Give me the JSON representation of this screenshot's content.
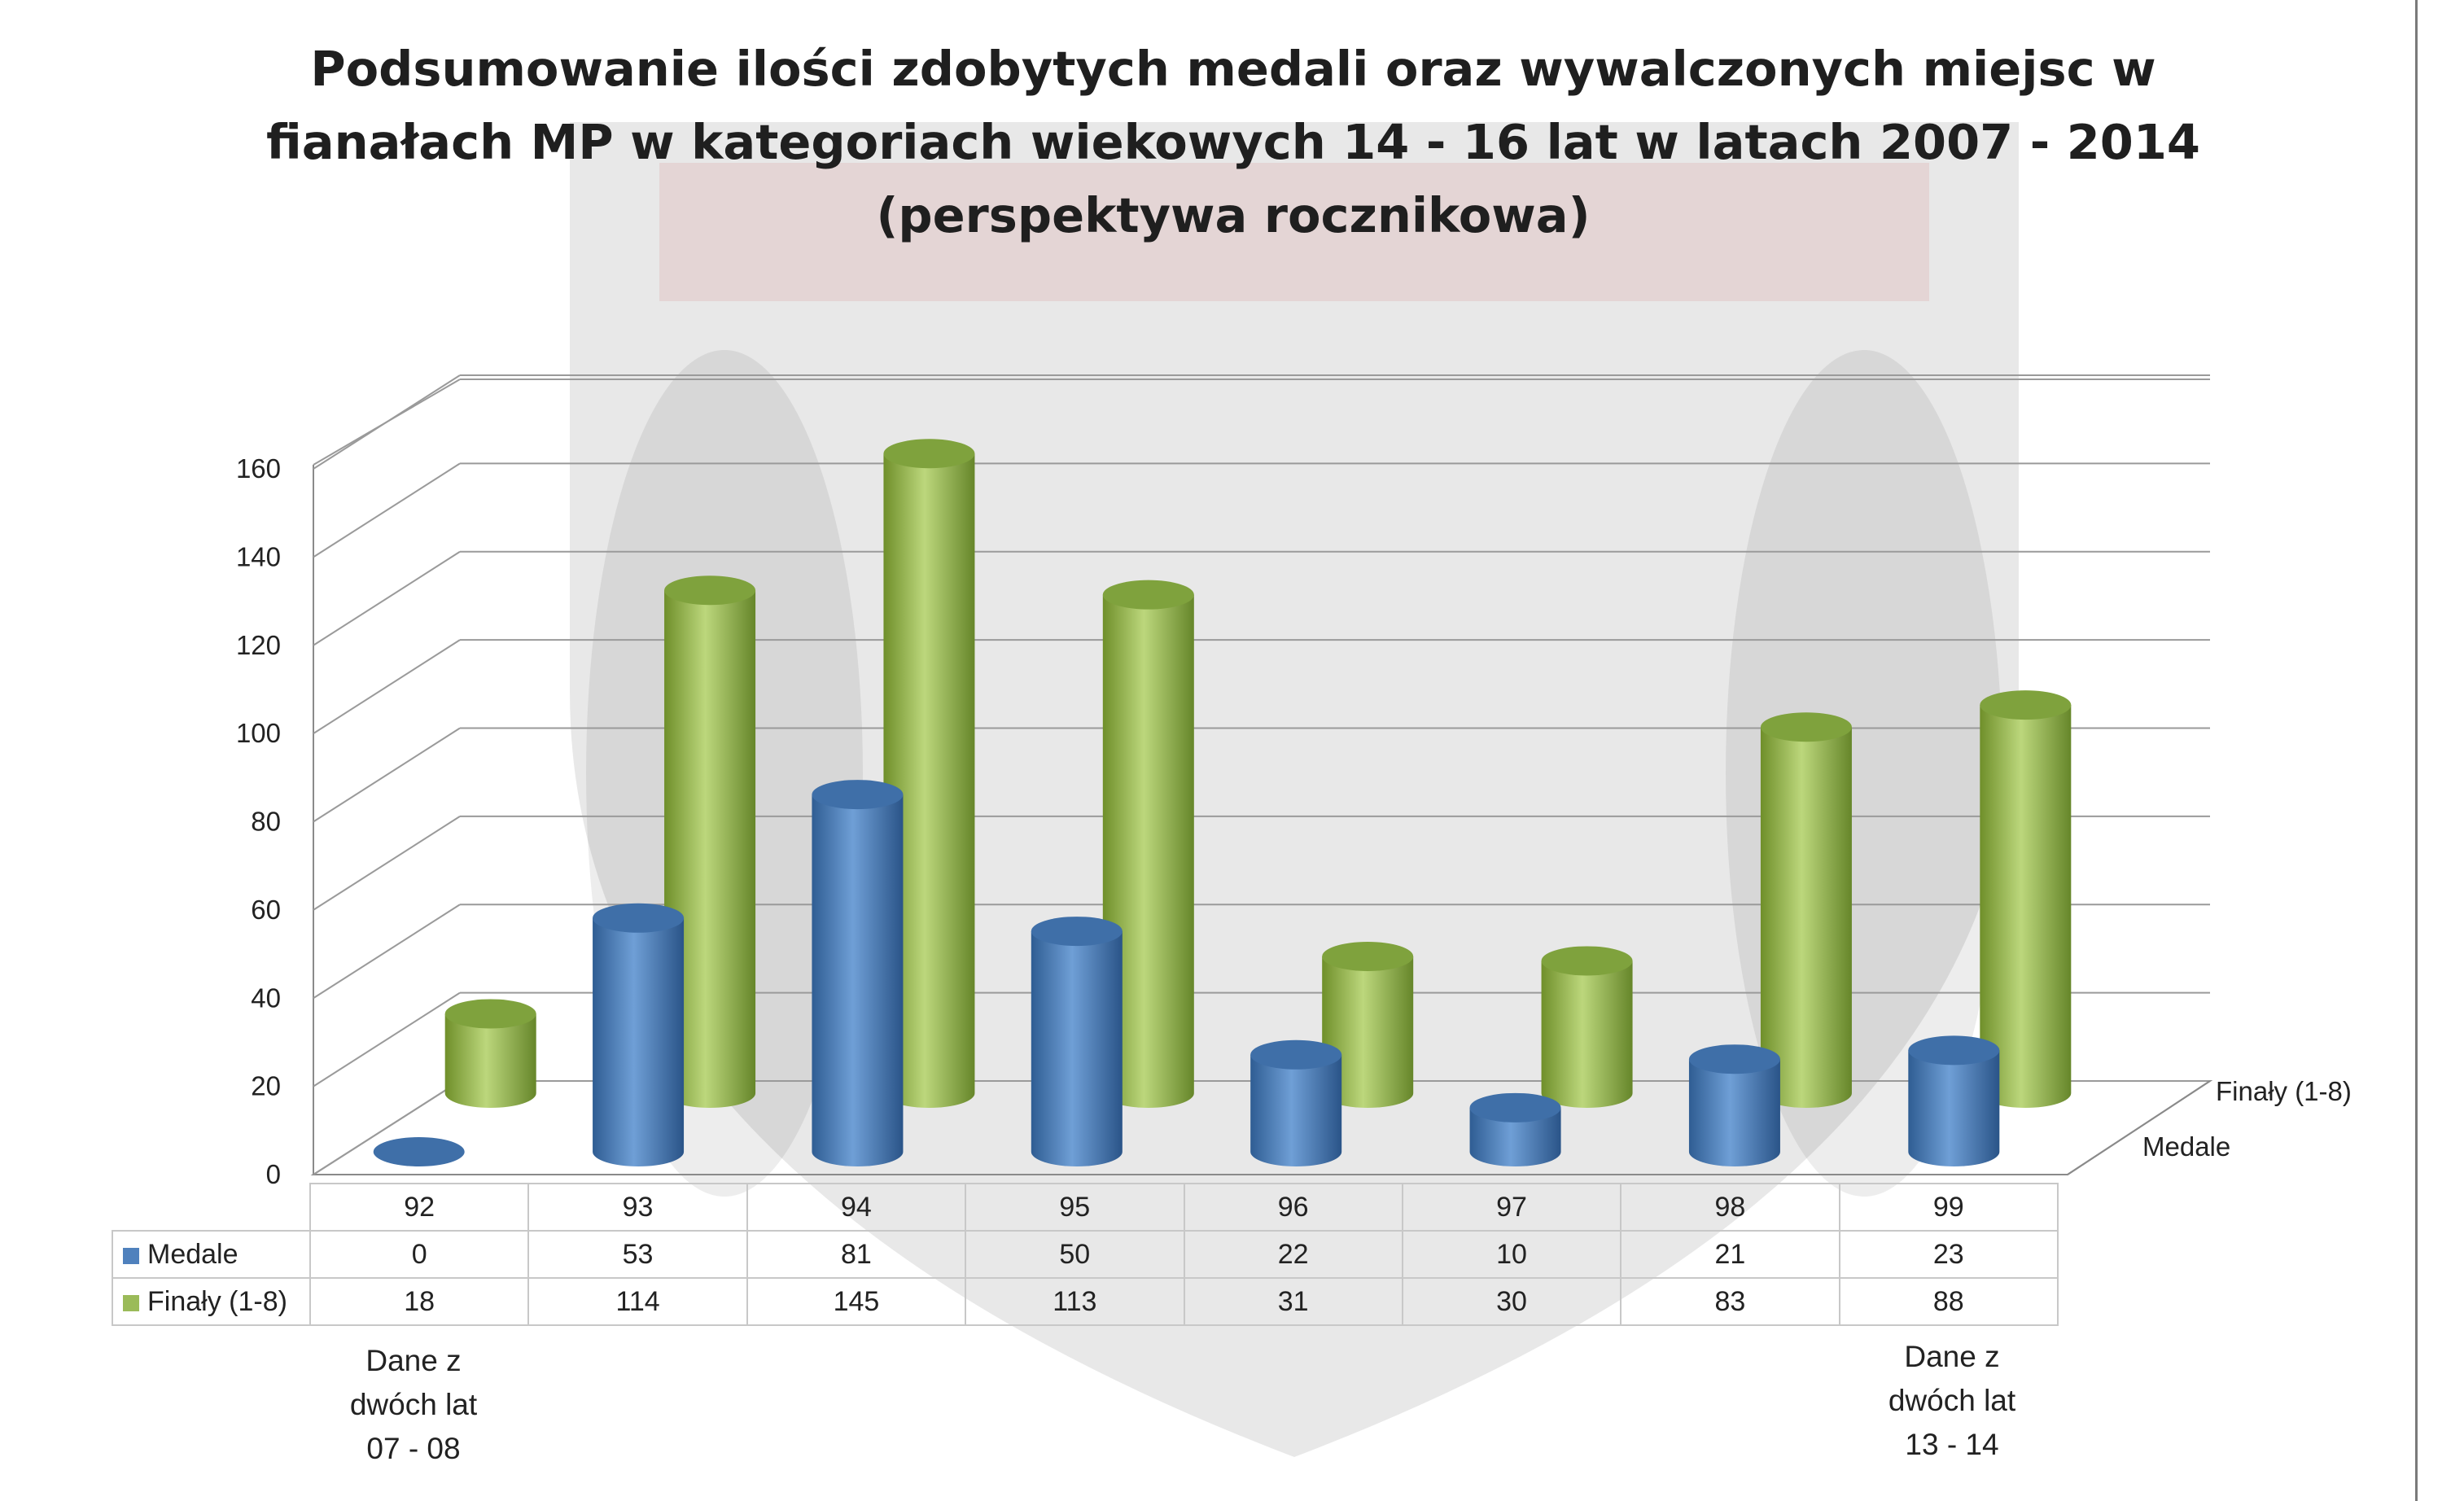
{
  "title_lines": [
    "Podsumowanie ilości zdobytych medali oraz wywalczonych miejsc w",
    "fianałach MP w kategoriach wiekowych 14 - 16 lat w latach 2007 - 2014",
    "(perspektywa rocznikowa)"
  ],
  "colors": {
    "medale": "#4f81bd",
    "finaly": "#9bbb59"
  },
  "chart_data": {
    "type": "bar",
    "title": "Podsumowanie ilości zdobytych medali oraz wywalczonych miejsc w fianałach MP w kategoriach wiekowych 14 - 16 lat w latach 2007 - 2014 (perspektywa rocznikowa)",
    "categories": [
      "92",
      "93",
      "94",
      "95",
      "96",
      "97",
      "98",
      "99"
    ],
    "series": [
      {
        "name": "Medale",
        "values": [
          0,
          53,
          81,
          50,
          22,
          10,
          21,
          23
        ]
      },
      {
        "name": "Finały (1-8)",
        "values": [
          18,
          114,
          145,
          113,
          31,
          30,
          83,
          88
        ]
      }
    ],
    "yticks": [
      "0",
      "20",
      "40",
      "60",
      "80",
      "100",
      "120",
      "140",
      "160"
    ],
    "ylim": [
      0,
      160
    ],
    "grid": true,
    "legend": "data table",
    "style": "3d cylinder"
  },
  "notes": {
    "left": [
      "Dane z",
      "dwóch lat",
      "07 - 08"
    ],
    "right": [
      "Dane z",
      "dwóch lat",
      "13 - 14"
    ]
  }
}
